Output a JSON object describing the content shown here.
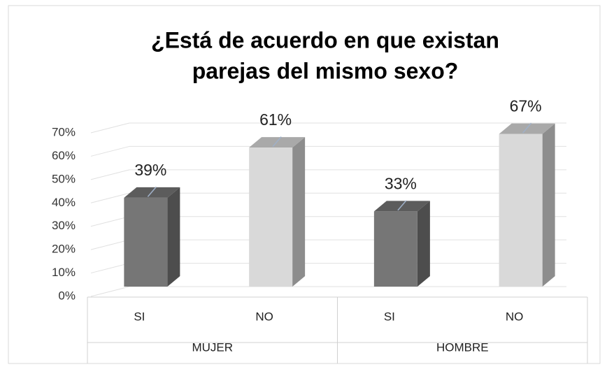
{
  "chart_data": {
    "type": "bar3d",
    "title": [
      "¿Está de acuerdo en que existan",
      "parejas del mismo sexo?"
    ],
    "categories": [
      "SI",
      "NO",
      "SI",
      "NO"
    ],
    "groups": [
      "MUJER",
      "HOMBRE"
    ],
    "values": [
      39,
      61,
      33,
      67
    ],
    "value_labels": [
      "39%",
      "61%",
      "33%",
      "67%"
    ],
    "colors": [
      "#767676",
      "#d9d9d9",
      "#767676",
      "#d9d9d9"
    ],
    "ylim": [
      0,
      70
    ],
    "yticks": [
      {
        "value": 0,
        "label": "0%"
      },
      {
        "value": 10,
        "label": "10%"
      },
      {
        "value": 20,
        "label": "20%"
      },
      {
        "value": 30,
        "label": "30%"
      },
      {
        "value": 40,
        "label": "40%"
      },
      {
        "value": 50,
        "label": "50%"
      },
      {
        "value": 60,
        "label": "60%"
      },
      {
        "value": 70,
        "label": "70%"
      }
    ],
    "grid": true
  }
}
